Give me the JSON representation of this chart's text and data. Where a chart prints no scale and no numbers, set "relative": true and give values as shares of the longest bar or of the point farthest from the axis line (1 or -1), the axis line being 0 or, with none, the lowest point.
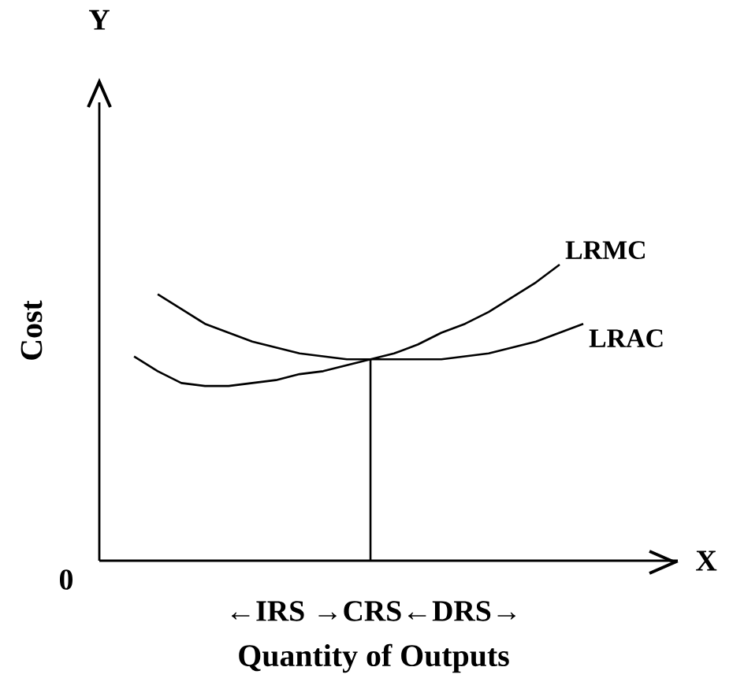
{
  "chart_data": {
    "type": "line",
    "relative": true,
    "xlabel": "Quantity of Outputs",
    "ylabel": "Cost",
    "categories": [
      null,
      null,
      null,
      null,
      null,
      null,
      null,
      null,
      null,
      null,
      null,
      null,
      null,
      null,
      null,
      null,
      null,
      null,
      null,
      null,
      null
    ],
    "series": [
      {
        "name": "LRMC",
        "color": "#000000",
        "values": [
          0.69,
          0.64,
          0.6,
          0.59,
          0.59,
          0.6,
          0.61,
          0.63,
          0.64,
          0.66,
          0.68,
          0.7,
          0.73,
          0.77,
          0.8,
          0.84,
          0.89,
          0.94,
          1,
          null,
          null
        ]
      },
      {
        "name": "LRAC",
        "color": "#000000",
        "values": [
          null,
          0.9,
          0.85,
          0.8,
          0.77,
          0.74,
          0.72,
          0.7,
          0.69,
          0.68,
          0.68,
          0.68,
          0.68,
          0.68,
          0.69,
          0.7,
          0.72,
          0.74,
          0.77,
          0.8,
          null
        ]
      }
    ],
    "annotations": [
      "Y",
      "X",
      "0",
      "←IRS →CRS←DRS→"
    ]
  }
}
